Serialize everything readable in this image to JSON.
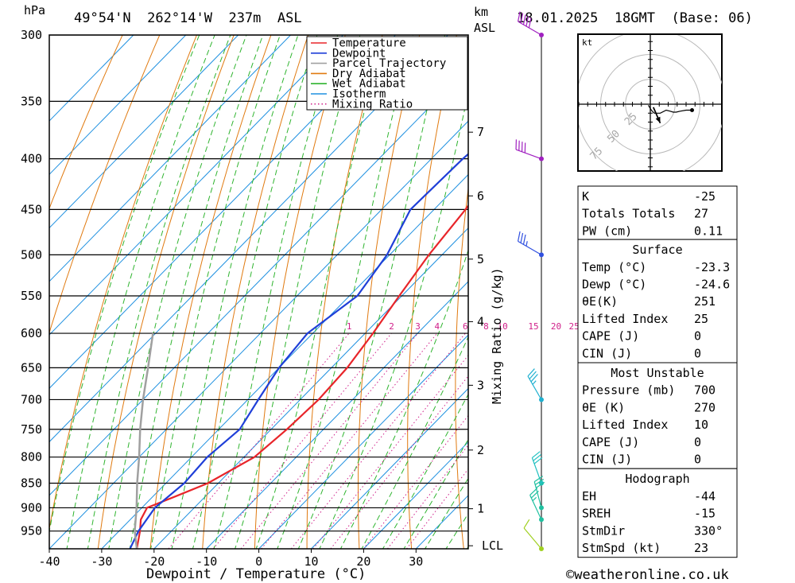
{
  "header": {
    "pressure_unit": "hPa",
    "location": "49°54'N  262°14'W  237m  ASL",
    "height_unit_1": "km",
    "height_unit_2": "ASL",
    "datetime": "18.01.2025  18GMT  (Base: 06)"
  },
  "axes": {
    "xlabel": "Dewpoint / Temperature (°C)",
    "mixing_ratio_label": "Mixing Ratio (g/kg)",
    "x_ticks": [
      "-40",
      "-30",
      "-20",
      "-10",
      "0",
      "10",
      "20",
      "30"
    ],
    "pressure_ticks": [
      "300",
      "350",
      "400",
      "450",
      "500",
      "550",
      "600",
      "650",
      "700",
      "750",
      "800",
      "850",
      "900",
      "950"
    ],
    "km_ticks": [
      "7",
      "6",
      "5",
      "4",
      "3",
      "2",
      "1"
    ],
    "lcl_label": "LCL",
    "mixing_ratio_ticks": [
      "1",
      "2",
      "3",
      "4",
      "6",
      "8",
      "10",
      "15",
      "20",
      "25"
    ]
  },
  "legend": {
    "items": [
      {
        "label": "Temperature",
        "color": "#e8252a",
        "style": "solid"
      },
      {
        "label": "Dewpoint",
        "color": "#1f3fd8",
        "style": "solid"
      },
      {
        "label": "Parcel Trajectory",
        "color": "#a0a0a0",
        "style": "solid"
      },
      {
        "label": "Dry Adiabat",
        "color": "#e07a10",
        "style": "solid"
      },
      {
        "label": "Wet Adiabat",
        "color": "#2fb42f",
        "style": "solid"
      },
      {
        "label": "Isotherm",
        "color": "#1e90e0",
        "style": "solid"
      },
      {
        "label": "Mixing Ratio",
        "color": "#d0208a",
        "style": "dotted"
      }
    ]
  },
  "chart_data": {
    "type": "line",
    "xlabel": "Dewpoint / Temperature (°C)",
    "ylabel": "hPa",
    "xlim": [
      -40,
      40
    ],
    "ylim": [
      990,
      300
    ],
    "series": [
      {
        "name": "Temperature",
        "color": "#e8252a",
        "points": [
          [
            990,
            -23.3
          ],
          [
            950,
            -26
          ],
          [
            925,
            -28
          ],
          [
            900,
            -29
          ],
          [
            875,
            -25.5
          ],
          [
            850,
            -22
          ],
          [
            800,
            -18
          ],
          [
            750,
            -17
          ],
          [
            700,
            -16.5
          ],
          [
            650,
            -17
          ],
          [
            600,
            -18.5
          ],
          [
            550,
            -20.5
          ],
          [
            500,
            -22.5
          ],
          [
            450,
            -24
          ],
          [
            400,
            -26.5
          ],
          [
            350,
            -28
          ],
          [
            325,
            -25
          ],
          [
            300,
            -21
          ]
        ]
      },
      {
        "name": "Dewpoint",
        "color": "#1f3fd8",
        "points": [
          [
            990,
            -24.6
          ],
          [
            950,
            -26.3
          ],
          [
            900,
            -27.5
          ],
          [
            850,
            -26.5
          ],
          [
            800,
            -27
          ],
          [
            750,
            -26
          ],
          [
            700,
            -28
          ],
          [
            650,
            -30
          ],
          [
            600,
            -31
          ],
          [
            550,
            -28.5
          ],
          [
            500,
            -30.5
          ],
          [
            450,
            -34.5
          ],
          [
            400,
            -34
          ],
          [
            350,
            -32
          ],
          [
            300,
            -26
          ]
        ]
      },
      {
        "name": "Parcel Trajectory",
        "color": "#a0a0a0",
        "points": [
          [
            990,
            -23.3
          ],
          [
            950,
            -27
          ],
          [
            900,
            -31
          ],
          [
            850,
            -35.5
          ],
          [
            800,
            -40
          ],
          [
            750,
            -45
          ],
          [
            700,
            -50
          ],
          [
            650,
            -55
          ],
          [
            600,
            -60.5
          ]
        ]
      }
    ],
    "wind_barbs": [
      {
        "pressure": 300,
        "dir": 300,
        "speed_kt": 50,
        "color": "#a020c0"
      },
      {
        "pressure": 400,
        "dir": 290,
        "speed_kt": 40,
        "color": "#a020c0"
      },
      {
        "pressure": 500,
        "dir": 300,
        "speed_kt": 35,
        "color": "#3050e0"
      },
      {
        "pressure": 700,
        "dir": 330,
        "speed_kt": 35,
        "color": "#20b0d0"
      },
      {
        "pressure": 850,
        "dir": 340,
        "speed_kt": 30,
        "color": "#20c0c0"
      },
      {
        "pressure": 900,
        "dir": 345,
        "speed_kt": 30,
        "color": "#20c0a0"
      },
      {
        "pressure": 925,
        "dir": 335,
        "speed_kt": 25,
        "color": "#20c0a0"
      },
      {
        "pressure": 990,
        "dir": 320,
        "speed_kt": 10,
        "color": "#a0d020"
      }
    ],
    "hodograph": {
      "unit": "kt",
      "rings": [
        "25",
        "50",
        "75"
      ],
      "points": [
        [
          -2,
          -1
        ],
        [
          1,
          -6
        ],
        [
          4,
          -9
        ],
        [
          10,
          -9
        ],
        [
          16,
          -6
        ],
        [
          20,
          -7
        ],
        [
          23,
          -8
        ],
        [
          26,
          -8
        ],
        [
          30,
          -7
        ],
        [
          36,
          -6
        ],
        [
          42,
          -6
        ]
      ],
      "storm_motion": [
        [
          3,
          -3
        ],
        [
          10,
          -19
        ]
      ]
    }
  },
  "indices": {
    "block1": [
      {
        "label": "K",
        "value": "-25"
      },
      {
        "label": "Totals Totals",
        "value": "27"
      },
      {
        "label": "PW (cm)",
        "value": "0.11"
      }
    ],
    "surface": {
      "title": "Surface",
      "rows": [
        {
          "label": "Temp (°C)",
          "value": "-23.3"
        },
        {
          "label": "Dewp (°C)",
          "value": "-24.6"
        },
        {
          "label": "θE(K)",
          "value": "251"
        },
        {
          "label": "Lifted Index",
          "value": "25"
        },
        {
          "label": "CAPE (J)",
          "value": "0"
        },
        {
          "label": "CIN (J)",
          "value": "0"
        }
      ]
    },
    "most_unstable": {
      "title": "Most Unstable",
      "rows": [
        {
          "label": "Pressure (mb)",
          "value": "700"
        },
        {
          "label": "θE (K)",
          "value": "270"
        },
        {
          "label": "Lifted Index",
          "value": "10"
        },
        {
          "label": "CAPE (J)",
          "value": "0"
        },
        {
          "label": "CIN (J)",
          "value": "0"
        }
      ]
    },
    "hodograph": {
      "title": "Hodograph",
      "rows": [
        {
          "label": "EH",
          "value": "-44"
        },
        {
          "label": "SREH",
          "value": "-15"
        },
        {
          "label": "StmDir",
          "value": "330°"
        },
        {
          "label": "StmSpd (kt)",
          "value": "23"
        }
      ]
    }
  },
  "footer": {
    "copyright": "©weatheronline.co.uk"
  }
}
